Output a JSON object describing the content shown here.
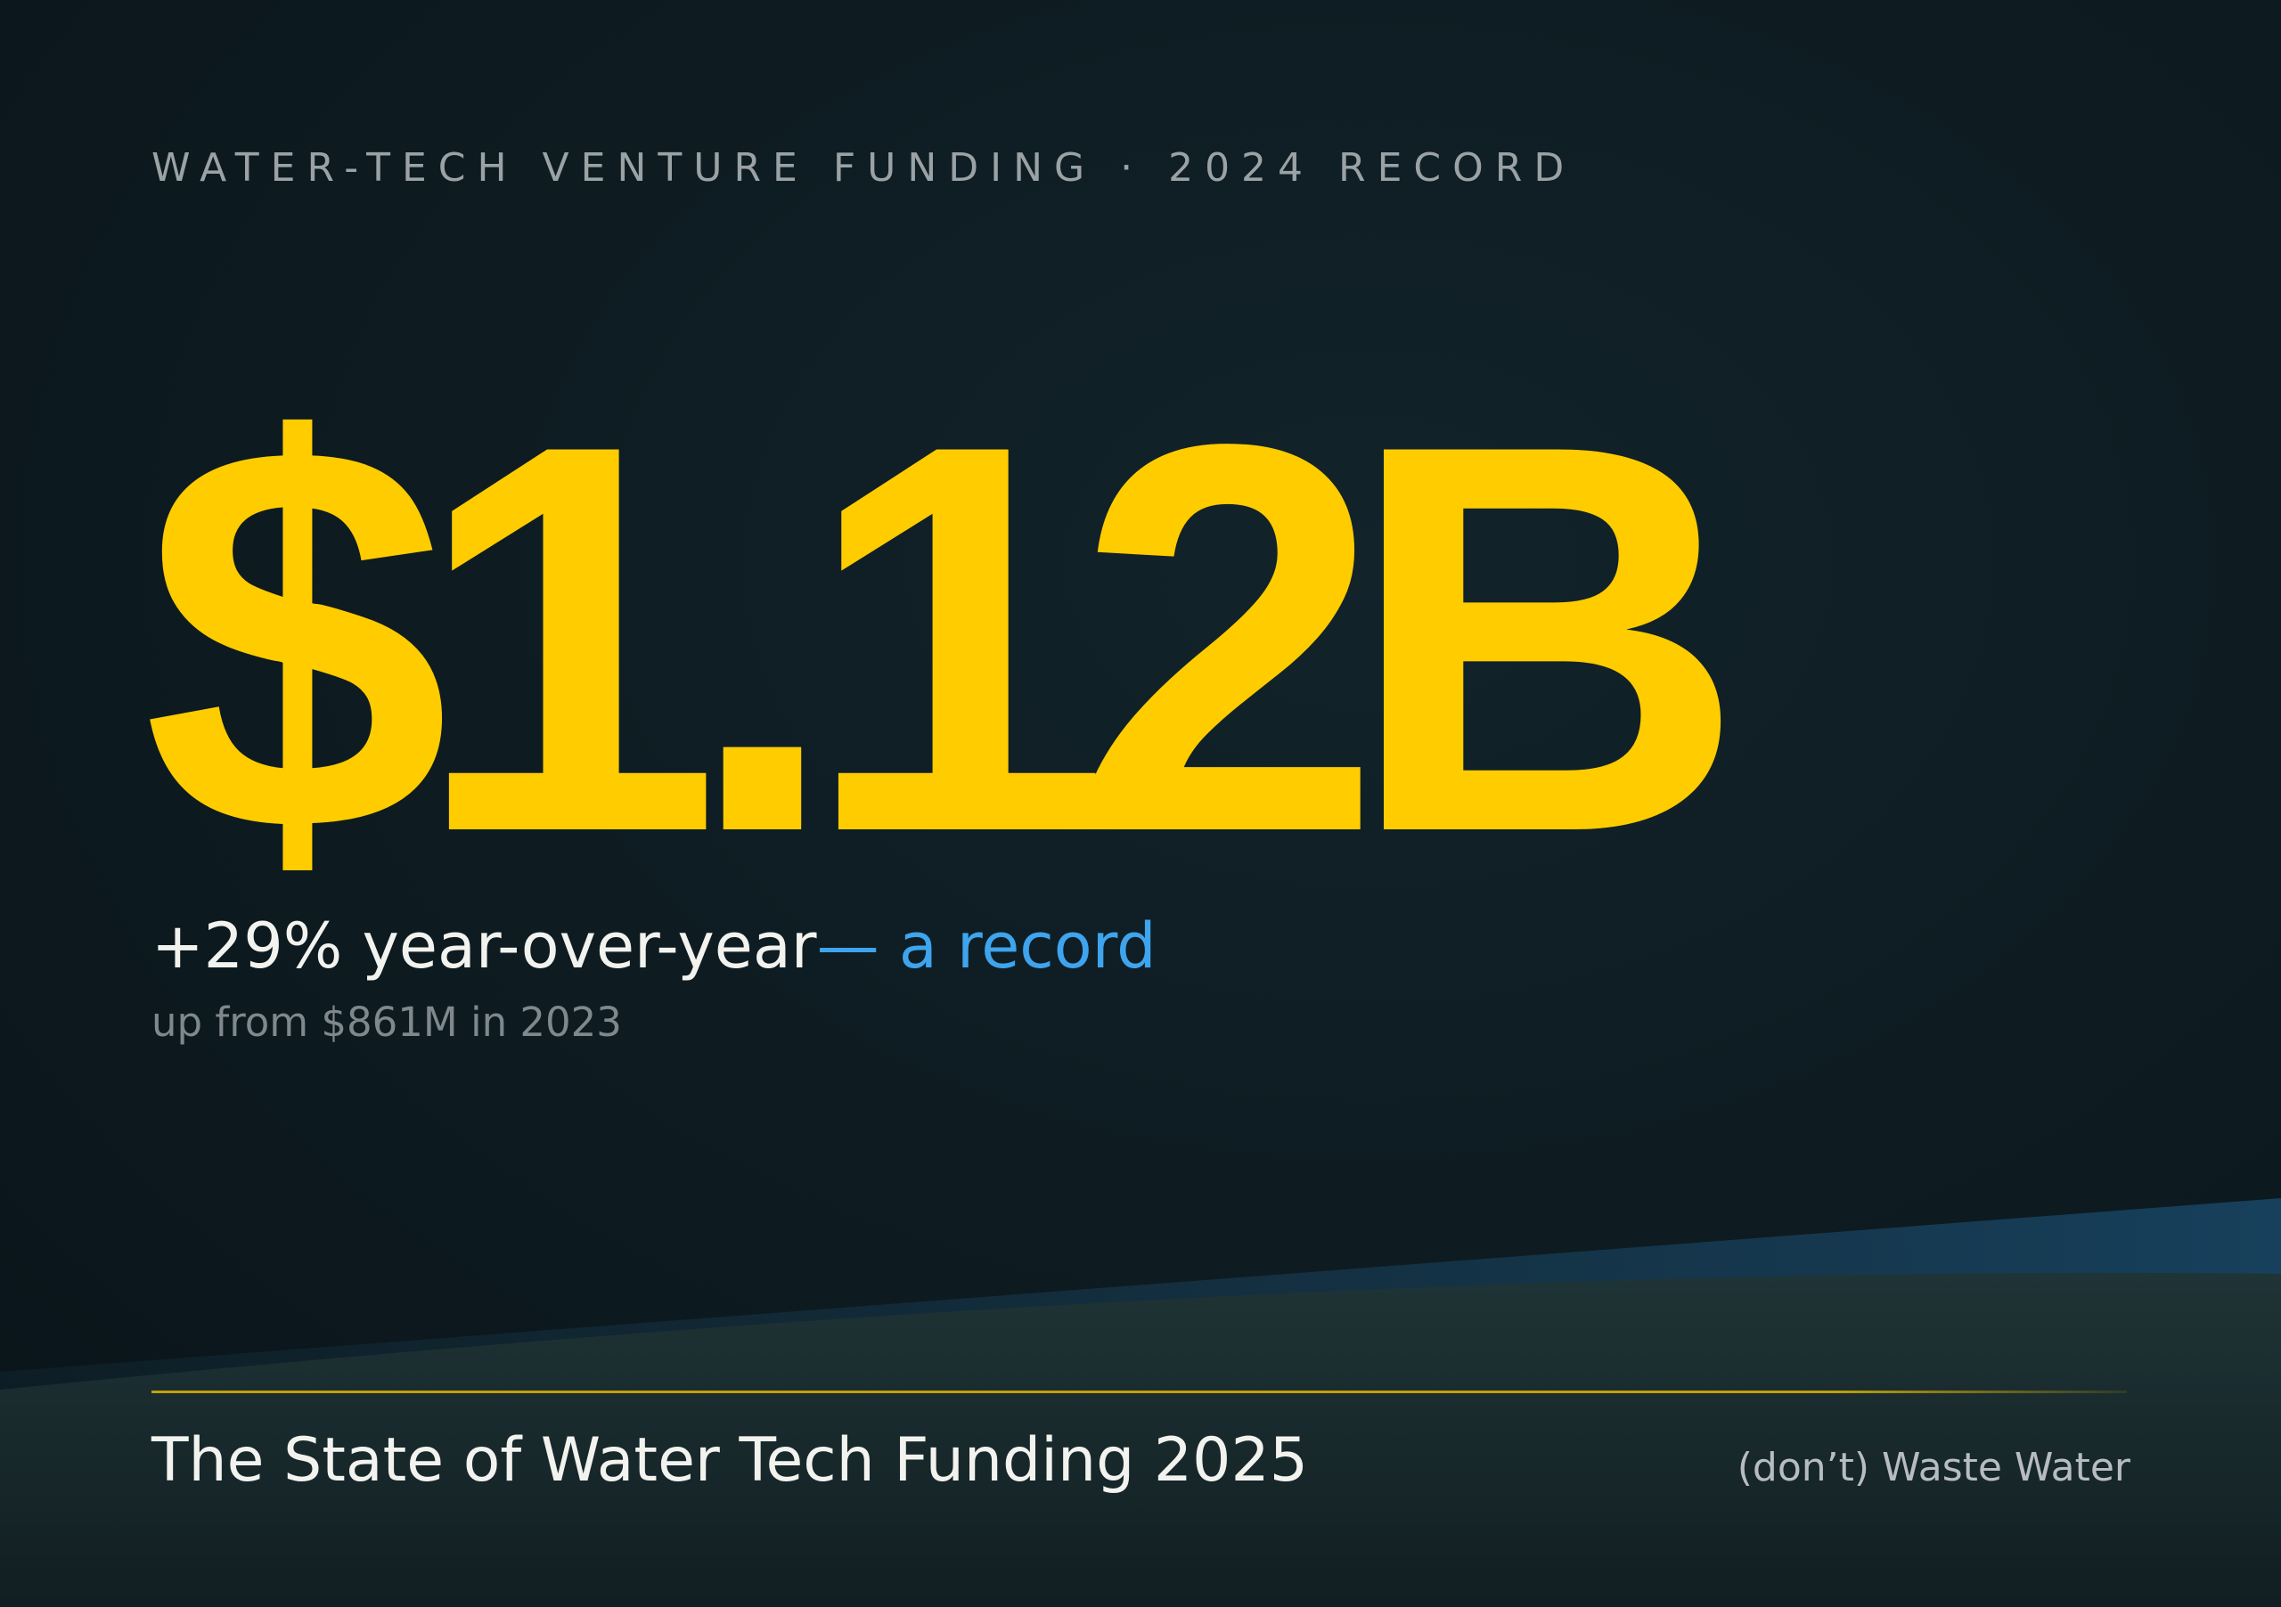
{
  "eyebrow": "WATER-TECH VENTURE FUNDING · 2024 RECORD",
  "headline": "$1.12B",
  "subline": {
    "change": "+29% year-over-year",
    "accent": "— a record"
  },
  "note": "up from $861M in 2023",
  "footer": {
    "title": "The State of Water Tech Funding 2025",
    "brand": "(don’t) Waste Water"
  }
}
